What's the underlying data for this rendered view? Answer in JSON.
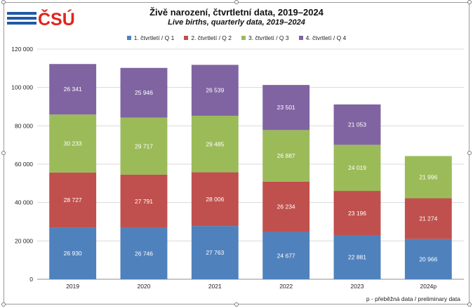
{
  "header": {
    "logo_text": "ČSÚ",
    "title": "Živě narození, čtvrtletní data, 2019–2024",
    "subtitle": "Live births, quarterly data, 2019–2024"
  },
  "footnote": "p - přeběžná data / preliminary data",
  "colors": {
    "q1": "#4f81bd",
    "q2": "#c0504d",
    "q3": "#9bbb59",
    "q4": "#8064a2",
    "logo": "#1f5aa6",
    "logo_red": "#e1251b"
  },
  "chart_data": {
    "type": "bar",
    "stacked": true,
    "title": "Živě narození, čtvrtletní data, 2019–2024",
    "subtitle": "Live births, quarterly data, 2019–2024",
    "categories": [
      "2019",
      "2020",
      "2021",
      "2022",
      "2023",
      "2024p"
    ],
    "series": [
      {
        "name": "1. čtvrtletí / Q 1",
        "values": [
          26930,
          26746,
          27763,
          24677,
          22881,
          20966
        ],
        "labels": [
          "26 930",
          "26 746",
          "27 763",
          "24 677",
          "22 881",
          "20 966"
        ]
      },
      {
        "name": "2. čtvrtletí / Q 2",
        "values": [
          28727,
          27791,
          28006,
          26234,
          23196,
          21274
        ],
        "labels": [
          "28 727",
          "27 791",
          "28 006",
          "26 234",
          "23 196",
          "21 274"
        ]
      },
      {
        "name": "3. čtvrtletí / Q 3",
        "values": [
          30233,
          29717,
          29485,
          26887,
          24019,
          21996
        ],
        "labels": [
          "30 233",
          "29 717",
          "29 485",
          "26 887",
          "24 019",
          "21 996"
        ]
      },
      {
        "name": "4. čtvrtletí / Q 4",
        "values": [
          26341,
          25946,
          26539,
          23501,
          21053,
          null
        ],
        "labels": [
          "26 341",
          "25 946",
          "26 539",
          "23 501",
          "21 053",
          null
        ]
      }
    ],
    "ylim": [
      0,
      120000
    ],
    "yticks": [
      0,
      20000,
      40000,
      60000,
      80000,
      100000,
      120000
    ],
    "ytick_labels": [
      "0",
      "20 000",
      "40 000",
      "60 000",
      "80 000",
      "100 000",
      "120 000"
    ],
    "grid": true,
    "legend_position": "top"
  }
}
